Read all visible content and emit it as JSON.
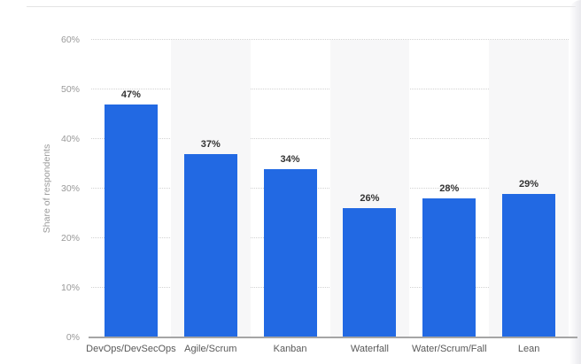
{
  "page": {
    "background": "#ffffff",
    "top_divider_color": "#e4e4e4",
    "right_edge_shadow_color": "#ebebef"
  },
  "chart_data": {
    "type": "bar",
    "title": "",
    "categories": [
      "DevOps/DevSecOps",
      "Agile/Scrum",
      "Kanban",
      "Waterfall",
      "Water/Scrum/Fall",
      "Lean"
    ],
    "values": [
      47,
      37,
      34,
      26,
      28,
      29
    ],
    "value_labels": [
      "47%",
      "37%",
      "34%",
      "26%",
      "28%",
      "29%"
    ],
    "xlabel": "",
    "ylabel": "Share of respondents",
    "ylim": [
      0,
      60
    ],
    "ytick_step": 10,
    "ytick_labels": [
      "0%",
      "10%",
      "20%",
      "30%",
      "40%",
      "50%",
      "60%"
    ],
    "legend": "none",
    "grid": "horizontal-dotted",
    "layout": {
      "striped_columns": "alternating light-gray background behind every second category",
      "value_labels_position": "above bars"
    },
    "colors": {
      "bar": "#2269e3",
      "column_stripe": "#f7f7f8",
      "gridline": "#d2d2d2",
      "axis_line": "#a5a5a5",
      "tick_text": "#999999",
      "category_text": "#595959",
      "value_text": "#333333"
    }
  }
}
